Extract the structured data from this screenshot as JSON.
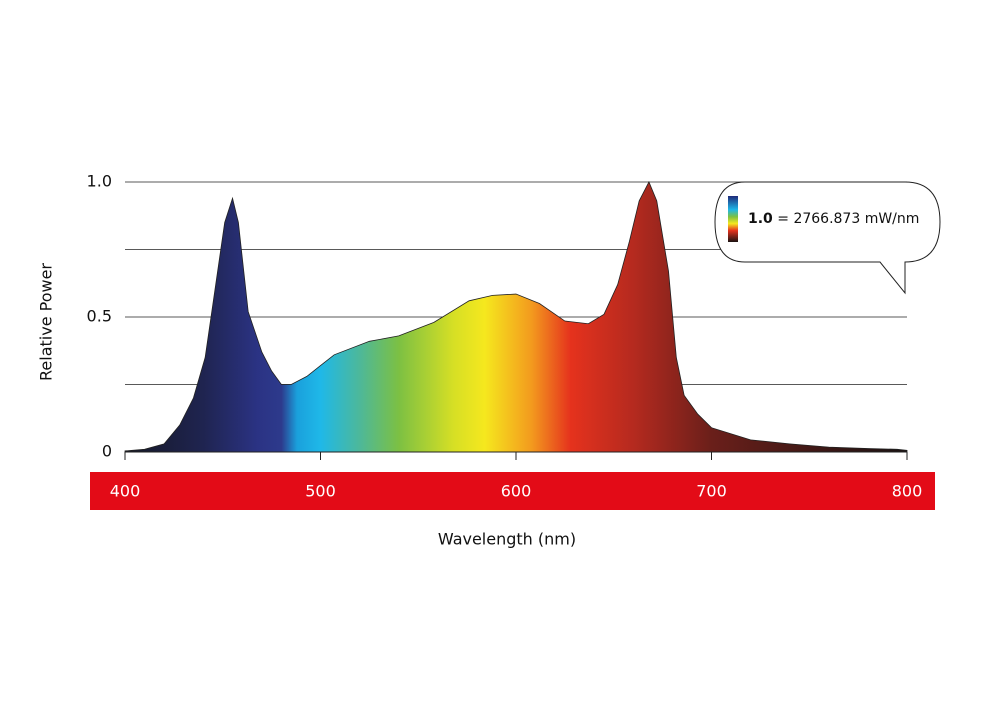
{
  "chart_data": {
    "type": "area",
    "y_label": "Relative Power",
    "x_label": "Wavelength (nm)",
    "x": [
      400,
      410,
      420,
      428,
      435,
      441,
      446,
      451,
      455,
      458,
      463,
      470,
      475,
      480,
      485,
      493,
      500,
      507,
      525,
      540,
      558,
      576,
      588,
      600,
      612,
      625,
      637,
      645,
      652,
      658,
      663,
      668,
      672,
      678,
      682,
      686,
      693,
      700,
      720,
      740,
      760,
      780,
      795,
      800
    ],
    "values": [
      0.004,
      0.01,
      0.03,
      0.1,
      0.2,
      0.35,
      0.6,
      0.85,
      0.94,
      0.85,
      0.52,
      0.37,
      0.3,
      0.25,
      0.25,
      0.28,
      0.32,
      0.36,
      0.41,
      0.43,
      0.48,
      0.56,
      0.58,
      0.585,
      0.55,
      0.485,
      0.475,
      0.51,
      0.62,
      0.78,
      0.93,
      1.0,
      0.93,
      0.67,
      0.35,
      0.21,
      0.14,
      0.09,
      0.045,
      0.03,
      0.018,
      0.013,
      0.01,
      0.006
    ],
    "xlim": [
      400,
      800
    ],
    "xticks": [
      400,
      500,
      600,
      700,
      800
    ],
    "ylim": [
      0,
      1
    ],
    "yticks": [
      0,
      0.5,
      {
        "value": 1,
        "label": "1.0"
      }
    ],
    "grid_yticks": [
      0.25,
      0.5,
      0.75,
      1
    ],
    "grid": true,
    "callout": {
      "key": "1.0",
      "text": "= 2766.873 mW/nm"
    }
  }
}
